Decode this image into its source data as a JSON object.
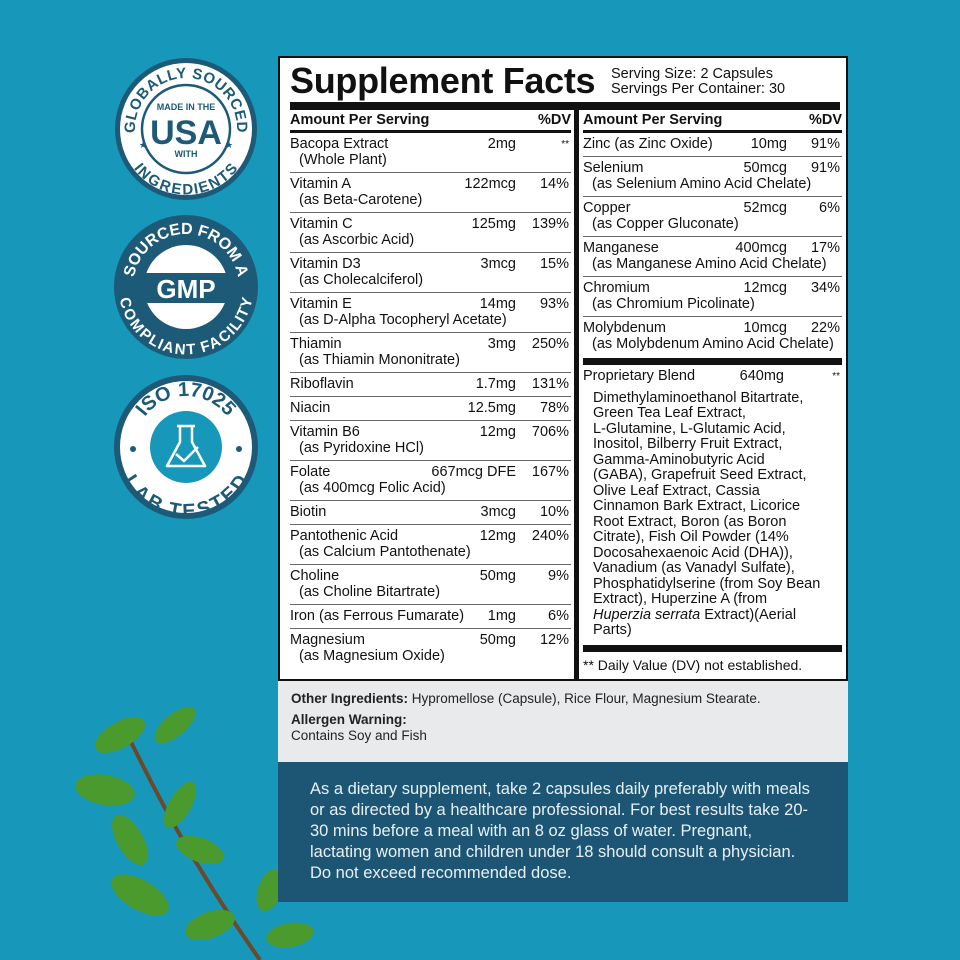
{
  "colors": {
    "background": "#1797b9",
    "badge_dark": "#1d5a78",
    "panel_dark": "#1c5674",
    "leaf": "#3f8a2a"
  },
  "badges": [
    {
      "top_arc": "GLOBALLY SOURCED",
      "line1": "MADE IN THE",
      "main": "USA",
      "line2": "WITH",
      "bottom_arc": "INGREDIENTS"
    },
    {
      "top_arc": "SOURCED FROM A",
      "main": "GMP",
      "bottom_arc": "COMPLIANT FACILITY"
    },
    {
      "top_arc": "ISO 17025",
      "icon": "flask-check-icon",
      "bottom_arc": "LAB TESTED"
    }
  ],
  "facts": {
    "title": "Supplement Facts",
    "serving_size": "Serving Size: 2 Capsules",
    "servings_per_container": "Servings Per Container: 30",
    "header_amount": "Amount Per Serving",
    "header_dv": "%DV",
    "left": [
      {
        "name": "Bacopa Extract",
        "sub": "(Whole Plant)",
        "amount": "2mg",
        "dv": "**"
      },
      {
        "name": "Vitamin A",
        "sub": "(as Beta-Carotene)",
        "amount": "122mcg",
        "dv": "14%"
      },
      {
        "name": "Vitamin C",
        "sub": "(as Ascorbic Acid)",
        "amount": "125mg",
        "dv": "139%"
      },
      {
        "name": "Vitamin D3",
        "sub": "(as Cholecalciferol)",
        "amount": "3mcg",
        "dv": "15%"
      },
      {
        "name": "Vitamin E",
        "sub": "(as D-Alpha Tocopheryl Acetate)",
        "amount": "14mg",
        "dv": "93%"
      },
      {
        "name": "Thiamin",
        "sub": "(as Thiamin Mononitrate)",
        "amount": "3mg",
        "dv": "250%"
      },
      {
        "name": "Riboflavin",
        "amount": "1.7mg",
        "dv": "131%"
      },
      {
        "name": "Niacin",
        "amount": "12.5mg",
        "dv": "78%"
      },
      {
        "name": "Vitamin B6",
        "sub": "(as Pyridoxine HCl)",
        "amount": "12mg",
        "dv": "706%"
      },
      {
        "name": "Folate",
        "sub": "(as 400mcg Folic Acid)",
        "amount": "667mcg DFE",
        "dv": "167%"
      },
      {
        "name": "Biotin",
        "amount": "3mcg",
        "dv": "10%"
      },
      {
        "name": "Pantothenic Acid",
        "sub": "(as Calcium Pantothenate)",
        "amount": "12mg",
        "dv": "240%"
      },
      {
        "name": "Choline",
        "sub": "(as Choline Bitartrate)",
        "amount": "50mg",
        "dv": "9%"
      },
      {
        "name": "Iron (as Ferrous Fumarate)",
        "amount": "1mg",
        "dv": "6%"
      },
      {
        "name": "Magnesium",
        "sub": "(as Magnesium Oxide)",
        "amount": "50mg",
        "dv": "12%"
      }
    ],
    "right": [
      {
        "name": "Zinc (as Zinc Oxide)",
        "amount": "10mg",
        "dv": "91%"
      },
      {
        "name": "Selenium",
        "sub": "(as Selenium Amino Acid Chelate)",
        "amount": "50mcg",
        "dv": "91%"
      },
      {
        "name": "Copper",
        "sub": "(as Copper Gluconate)",
        "amount": "52mcg",
        "dv": "6%"
      },
      {
        "name": "Manganese",
        "sub": "(as Manganese Amino Acid Chelate)",
        "amount": "400mcg",
        "dv": "17%"
      },
      {
        "name": "Chromium",
        "sub": "(as Chromium Picolinate)",
        "amount": "12mcg",
        "dv": "34%"
      },
      {
        "name": "Molybdenum",
        "sub": "(as Molybdenum Amino Acid Chelate)",
        "amount": "10mcg",
        "dv": "22%"
      }
    ],
    "blend": {
      "name": "Proprietary Blend",
      "amount": "640mg",
      "dv": "**",
      "lines": [
        "Dimethylaminoethanol Bitartrate,",
        "Green Tea Leaf Extract,",
        "L-Glutamine, L-Glutamic Acid,",
        "Inositol, Bilberry Fruit Extract,",
        "Gamma-Aminobutyric Acid",
        "(GABA), Grapefruit Seed Extract,",
        "Olive Leaf Extract, Cassia",
        "Cinnamon Bark Extract, Licorice",
        "Root Extract, Boron (as Boron",
        "Citrate), Fish Oil Powder (14%",
        "Docosahexaenoic Acid (DHA)),",
        "Vanadium (as Vanadyl Sulfate),",
        "Phosphatidylserine (from Soy Bean",
        "Extract), Huperzine A (from"
      ],
      "italic_part": "Huperzia serrata",
      "after_italic": " Extract)(Aerial",
      "last_line": "Parts)"
    },
    "footnote": "** Daily Value (DV) not established."
  },
  "other": {
    "ingredients_label": "Other Ingredients:",
    "ingredients": " Hypromellose (Capsule), Rice Flour, Magnesium Stearate.",
    "allergen_label": "Allergen Warning:",
    "allergen": "Contains Soy and Fish"
  },
  "directions": "As a dietary supplement, take 2 capsules daily preferably with meals or as directed by a healthcare professional. For best results take 20-30 mins before a meal with an 8 oz glass of water. Pregnant, lactating women and children under 18 should consult a physician. Do not exceed recommended dose."
}
